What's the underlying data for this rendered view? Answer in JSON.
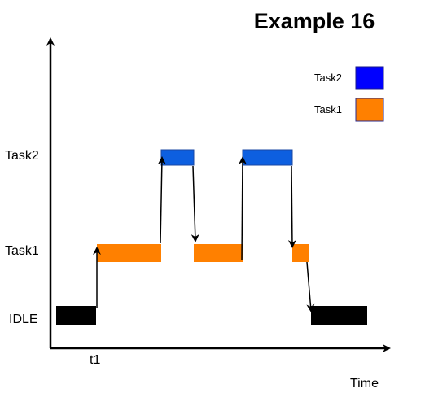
{
  "title": "Example 16",
  "y_labels": {
    "task2": "Task2",
    "task1": "Task1",
    "idle": "IDLE"
  },
  "x_labels": {
    "t1": "t1",
    "time": "Time"
  },
  "legend": [
    {
      "label": "Task2",
      "color": "#0000ff"
    },
    {
      "label": "Task1",
      "color": "#ff8000"
    }
  ],
  "colors": {
    "task2": "#0d5fe0",
    "task1": "#ff8000",
    "idle": "#000000",
    "axis": "#000000"
  }
}
